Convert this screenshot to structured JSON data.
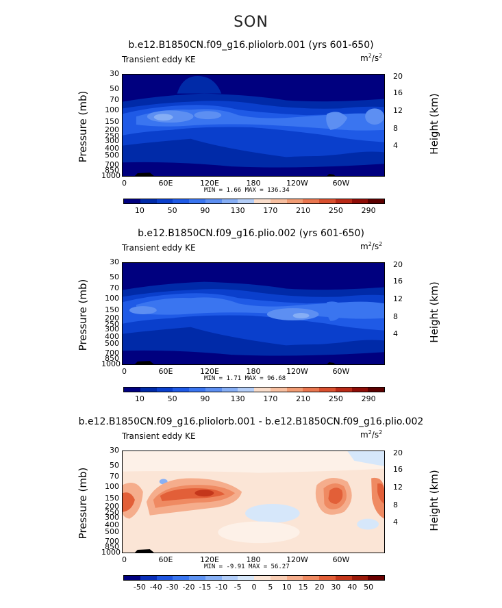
{
  "season": "SON",
  "panels": [
    {
      "title": "b.e12.B1850CN.f09_g16.pliolorb.001 (yrs 601-650)",
      "field_label": "Transient eddy KE",
      "units_base": "m",
      "units_exp1": "2",
      "units_mid": "/s",
      "units_exp2": "2",
      "minmax": "MIN =    1.66  MAX =  136.34",
      "colorbar_labels": [
        "10",
        "50",
        "90",
        "130",
        "170",
        "210",
        "250",
        "290"
      ]
    },
    {
      "title": "b.e12.B1850CN.f09_g16.plio.002 (yrs 601-650)",
      "field_label": "Transient eddy KE",
      "units_base": "m",
      "units_exp1": "2",
      "units_mid": "/s",
      "units_exp2": "2",
      "minmax": "MIN =    1.71  MAX =   96.68",
      "colorbar_labels": [
        "10",
        "50",
        "90",
        "130",
        "170",
        "210",
        "250",
        "290"
      ]
    },
    {
      "title": "b.e12.B1850CN.f09_g16.pliolorb.001 - b.e12.B1850CN.f09_g16.plio.002",
      "field_label": "Transient eddy KE",
      "units_base": "m",
      "units_exp1": "2",
      "units_mid": "/s",
      "units_exp2": "2",
      "minmax": "MIN =   -9.91  MAX =   56.27",
      "colorbar_labels": [
        "-50",
        "-40",
        "-30",
        "-20",
        "-15",
        "-10",
        "-5",
        "0",
        "5",
        "10",
        "15",
        "20",
        "30",
        "40",
        "50"
      ]
    }
  ],
  "axes": {
    "ylabel_left": "Pressure (mb)",
    "ylabel_right": "Height (km)",
    "pressure_ticks": [
      "30",
      "50",
      "70",
      "100",
      "150",
      "200",
      "250",
      "300",
      "400",
      "500",
      "700",
      "850",
      "1000"
    ],
    "height_ticks": [
      "4",
      "8",
      "12",
      "16",
      "20"
    ],
    "lon_ticks": [
      "0",
      "60E",
      "120E",
      "180",
      "120W",
      "60W"
    ]
  },
  "colors": {
    "ke_scale": [
      "#00007f",
      "#002aa8",
      "#0a3fcc",
      "#1f5ae6",
      "#3a75f0",
      "#5d8ff2",
      "#86aef5",
      "#b3cdf7",
      "#f9ddcb",
      "#f7bfa0",
      "#f19c74",
      "#e9764f",
      "#d9502f",
      "#b92a17",
      "#8f0d07",
      "#5c0000"
    ],
    "diff_scale": [
      "#00007f",
      "#0a2fb8",
      "#1f55e0",
      "#3a76f0",
      "#5e93f2",
      "#87b0f5",
      "#b1cdf8",
      "#d6e7fa",
      "#fbe5d6",
      "#f8cdb4",
      "#f5ad8c",
      "#ef8a62",
      "#e25f38",
      "#c4371b",
      "#9a1a0a",
      "#6a0000"
    ]
  },
  "chart_data": [
    {
      "type": "heatmap",
      "title": "b.e12.B1850CN.f09_g16.pliolorb.001 (yrs 601-650)",
      "variable": "Transient eddy KE",
      "units": "m2/s2",
      "x": "longitude 0 to 360",
      "y": "pressure 1000 to 30 mb",
      "levels": [
        10,
        30,
        50,
        70,
        90,
        110,
        130,
        150,
        170,
        190,
        210,
        230,
        250,
        270,
        290
      ],
      "min": 1.66,
      "max": 136.34
    },
    {
      "type": "heatmap",
      "title": "b.e12.B1850CN.f09_g16.plio.002 (yrs 601-650)",
      "variable": "Transient eddy KE",
      "units": "m2/s2",
      "levels": [
        10,
        30,
        50,
        70,
        90,
        110,
        130,
        150,
        170,
        190,
        210,
        230,
        250,
        270,
        290
      ],
      "min": 1.71,
      "max": 96.68
    },
    {
      "type": "heatmap",
      "title": "b.e12.B1850CN.f09_g16.pliolorb.001 - b.e12.B1850CN.f09_g16.plio.002",
      "variable": "Transient eddy KE difference",
      "units": "m2/s2",
      "levels": [
        -50,
        -40,
        -30,
        -20,
        -15,
        -10,
        -5,
        0,
        5,
        10,
        15,
        20,
        30,
        40,
        50
      ],
      "min": -9.91,
      "max": 56.27
    }
  ]
}
